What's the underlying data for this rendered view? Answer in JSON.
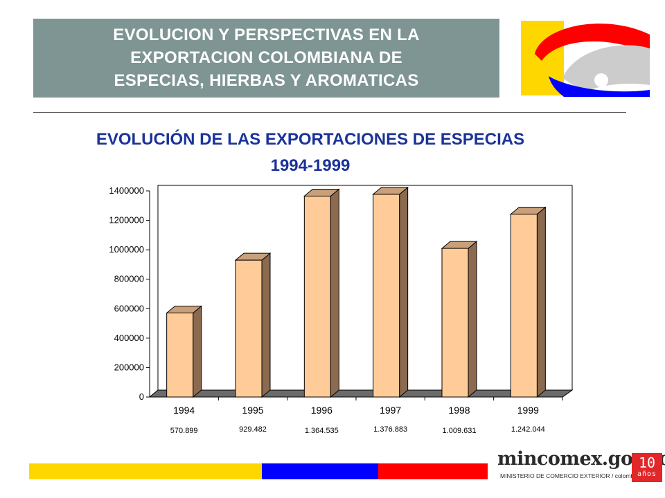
{
  "header": {
    "lines": [
      "EVOLUCION Y PERSPECTIVAS EN LA",
      "EXPORTACION COLOMBIANA DE",
      "ESPECIAS, HIERBAS Y AROMATICAS"
    ]
  },
  "slide_title": {
    "line1": "EVOLUCIÓN DE LAS  EXPORTACIONES DE ESPECIAS",
    "line2": "1994-1999"
  },
  "chart_data": {
    "type": "bar",
    "title": "",
    "xlabel": "",
    "ylabel": "",
    "categories": [
      "1994",
      "1995",
      "1996",
      "1997",
      "1998",
      "1999"
    ],
    "values": [
      570899,
      929482,
      1364535,
      1376883,
      1009631,
      1242044
    ],
    "data_labels": [
      "570.899",
      "929.482",
      "1.364.535",
      "1.376.883",
      "1.009.631",
      "1.242.044"
    ],
    "ylim": [
      0,
      1400000
    ],
    "y_ticks": [
      "0",
      "200000",
      "400000",
      "600000",
      "800000",
      "1000000",
      "1200000",
      "1400000"
    ],
    "grid": false,
    "three_d": true,
    "colors": {
      "bar_front": "#ffcc99",
      "bar_side": "#8c6a4f",
      "bar_top": "#c9a07a",
      "floor": "#6b6b6b"
    }
  },
  "footer": {
    "brand": "mincomex.gov.co",
    "subtitle": "MINISTERIO DE COMERCIO EXTERIOR / colombia",
    "badge_number": "10",
    "badge_text": "años",
    "stripe_colors": [
      "#ffd700",
      "#0000ff",
      "#ff0000"
    ]
  }
}
